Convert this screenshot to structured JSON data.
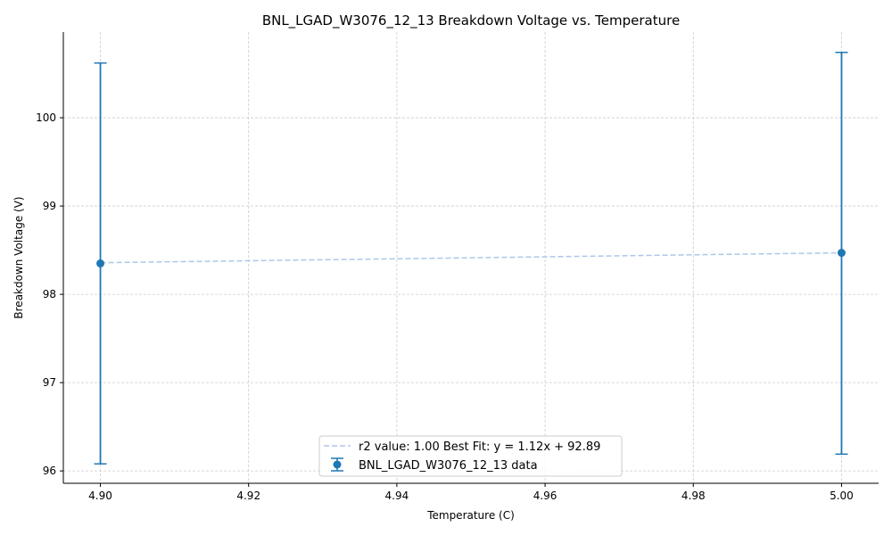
{
  "chart_data": {
    "type": "scatter",
    "title": "BNL_LGAD_W3076_12_13 Breakdown Voltage vs. Temperature",
    "xlabel": "Temperature (C)",
    "ylabel": "Breakdown Voltage (V)",
    "xlim": [
      4.895,
      5.005
    ],
    "ylim": [
      95.86,
      100.97
    ],
    "xticks": [
      4.9,
      4.92,
      4.94,
      4.96,
      4.98,
      5.0
    ],
    "xtick_labels": [
      "4.90",
      "4.92",
      "4.94",
      "4.96",
      "4.98",
      "5.00"
    ],
    "yticks": [
      96,
      97,
      98,
      99,
      100
    ],
    "ytick_labels": [
      "96",
      "97",
      "98",
      "99",
      "100"
    ],
    "grid": true,
    "legend_position": "bottom-center",
    "series": [
      {
        "name": "BNL_LGAD_W3076_12_13 data",
        "kind": "errorbar",
        "color": "#1f77b4",
        "points": [
          {
            "x": 4.9,
            "y": 98.35,
            "ylow": 96.08,
            "yhigh": 100.62
          },
          {
            "x": 5.0,
            "y": 98.47,
            "ylow": 96.19,
            "yhigh": 100.74
          }
        ]
      },
      {
        "name": "r2 value: 1.00 Best Fit: y = 1.12x + 92.89",
        "kind": "fit-line",
        "color": "#aec7e8",
        "x": [
          4.9,
          5.0
        ],
        "y": [
          98.358,
          98.47
        ]
      }
    ]
  }
}
